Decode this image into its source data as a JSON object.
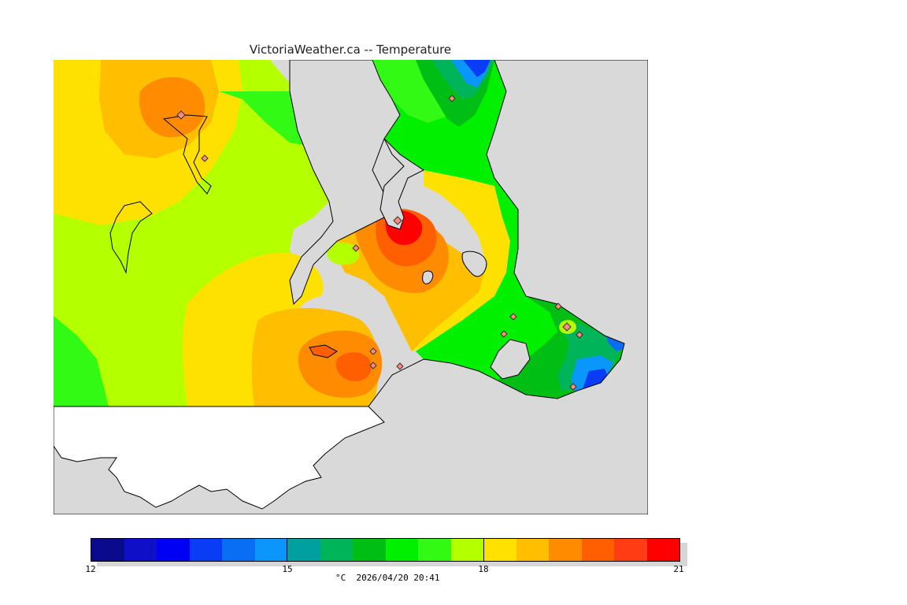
{
  "title": "VictoriaWeather.ca -- Temperature",
  "map": {
    "variable": "Temperature",
    "unit": "°C",
    "land_mask_color": "#d9d9d9",
    "no_data_color": "#ffffff",
    "station_marker_icon": "diamond-icon"
  },
  "colorbar": {
    "min": 12,
    "max": 21,
    "step": 0.5,
    "tick_labels": [
      "12",
      "15",
      "18",
      "21"
    ],
    "colors": [
      "#0a0a8c",
      "#0f0fc8",
      "#0000f5",
      "#0a3cf5",
      "#0a6ef5",
      "#0a96fa",
      "#00a0a0",
      "#00b45a",
      "#00be14",
      "#00f000",
      "#32fa14",
      "#b4ff00",
      "#ffe100",
      "#ffbe00",
      "#ff8c00",
      "#ff5f00",
      "#ff3c14",
      "#ff0000"
    ]
  },
  "caption": "°C  2026/04/20 20:41"
}
